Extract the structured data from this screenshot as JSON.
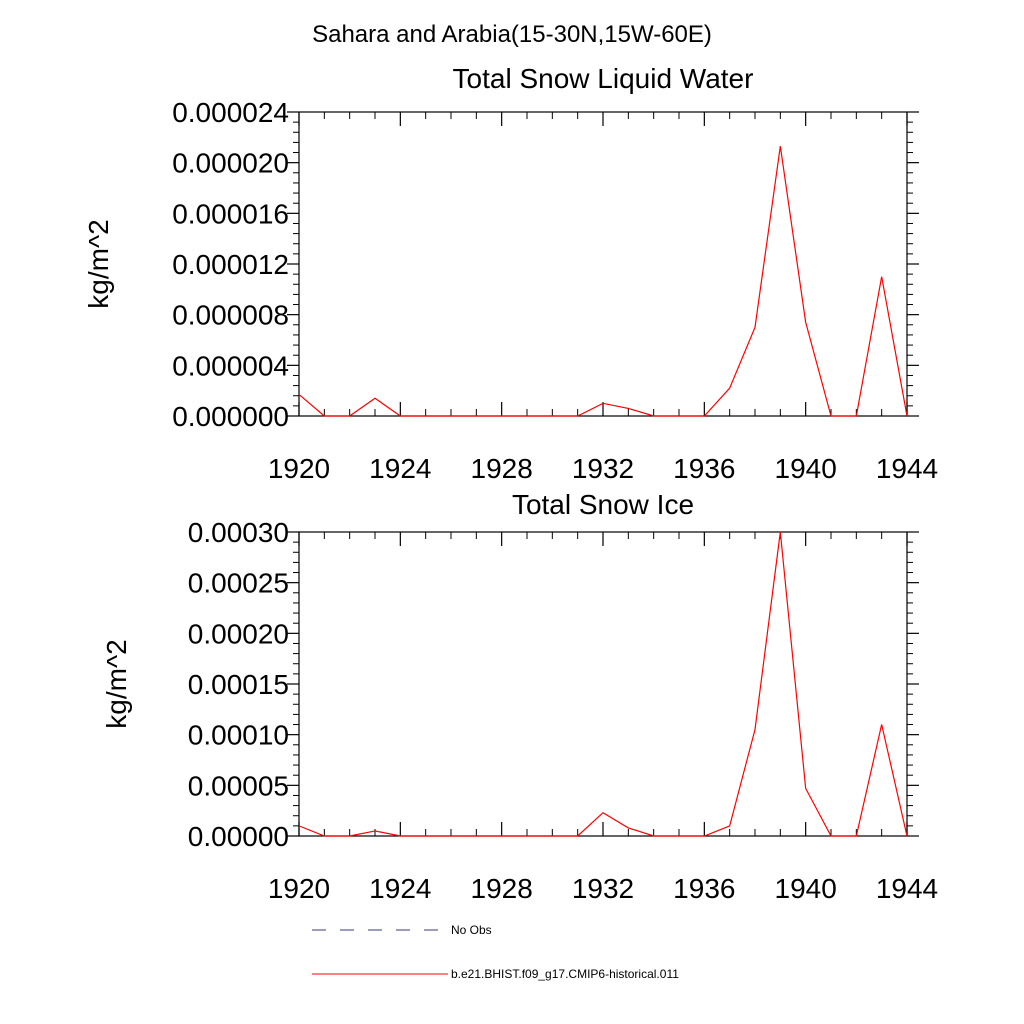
{
  "figure": {
    "suptitle": "Sahara and Arabia(15-30N,15W-60E)"
  },
  "colors": {
    "model": "#ff0000",
    "obs": "#3a3a78",
    "axes": "#000000"
  },
  "legend": {
    "position": "bottom",
    "entries": [
      {
        "label": "No Obs",
        "style": "dashed",
        "color": "#3a3a78"
      },
      {
        "label": "b.e21.BHIST.f09_g17.CMIP6-historical.011",
        "style": "solid",
        "color": "#ff0000"
      }
    ]
  },
  "chart_data": [
    {
      "type": "line",
      "title": "Total Snow Liquid Water",
      "xlabel": "",
      "ylabel": "kg/m^2",
      "xlim": [
        1920,
        1944
      ],
      "ylim": [
        0,
        2.4e-05
      ],
      "xticks": [
        1920,
        1924,
        1928,
        1932,
        1936,
        1940,
        1944
      ],
      "xtick_labels": [
        "1920",
        "1924",
        "1928",
        "1932",
        "1936",
        "1940",
        "1944"
      ],
      "yticks": [
        0,
        4e-06,
        8e-06,
        1.2e-05,
        1.6e-05,
        2e-05,
        2.4e-05
      ],
      "ytick_labels": [
        "0.000000",
        "0.000004",
        "0.000008",
        "0.000012",
        "0.000016",
        "0.000020",
        "0.000024"
      ],
      "grid": false,
      "series": [
        {
          "name": "b.e21.BHIST.f09_g17.CMIP6-historical.011",
          "x": [
            1920,
            1921,
            1922,
            1923,
            1924,
            1925,
            1926,
            1927,
            1928,
            1929,
            1930,
            1931,
            1932,
            1933,
            1934,
            1935,
            1936,
            1937,
            1938,
            1939,
            1940,
            1941,
            1942,
            1943,
            1944
          ],
          "y": [
            1.7e-06,
            0.0,
            0.0,
            1.4e-06,
            0.0,
            0.0,
            0.0,
            0.0,
            0.0,
            0.0,
            0.0,
            0.0,
            1e-06,
            6e-07,
            0.0,
            0.0,
            0.0,
            2.2e-06,
            7e-06,
            2.13e-05,
            7.4e-06,
            0.0,
            0.0,
            1.1e-05,
            0.0
          ]
        }
      ]
    },
    {
      "type": "line",
      "title": "Total Snow Ice",
      "xlabel": "",
      "ylabel": "kg/m^2",
      "xlim": [
        1920,
        1944
      ],
      "ylim": [
        0,
        0.0003
      ],
      "xticks": [
        1920,
        1924,
        1928,
        1932,
        1936,
        1940,
        1944
      ],
      "xtick_labels": [
        "1920",
        "1924",
        "1928",
        "1932",
        "1936",
        "1940",
        "1944"
      ],
      "yticks": [
        0,
        5e-05,
        0.0001,
        0.00015,
        0.0002,
        0.00025,
        0.0003
      ],
      "ytick_labels": [
        "0.00000",
        "0.00005",
        "0.00010",
        "0.00015",
        "0.00020",
        "0.00025",
        "0.00030"
      ],
      "grid": false,
      "series": [
        {
          "name": "b.e21.BHIST.f09_g17.CMIP6-historical.011",
          "x": [
            1920,
            1921,
            1922,
            1923,
            1924,
            1925,
            1926,
            1927,
            1928,
            1929,
            1930,
            1931,
            1932,
            1933,
            1934,
            1935,
            1936,
            1937,
            1938,
            1939,
            1940,
            1941,
            1942,
            1943,
            1944
          ],
          "y": [
            1e-05,
            0.0,
            0.0,
            5e-06,
            0.0,
            0.0,
            0.0,
            0.0,
            0.0,
            0.0,
            0.0,
            0.0,
            2.3e-05,
            8e-06,
            0.0,
            0.0,
            0.0,
            1e-05,
            0.000105,
            0.0003,
            4.7e-05,
            0.0,
            0.0,
            0.00011,
            0.0
          ]
        }
      ]
    }
  ]
}
